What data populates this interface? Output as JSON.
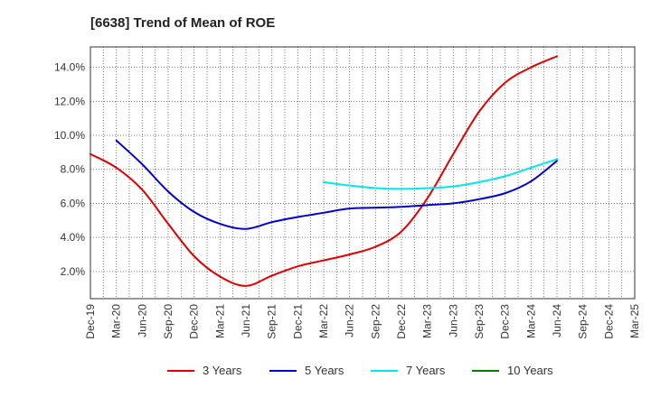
{
  "chart_data": {
    "type": "line",
    "title": "[6638]  Trend of Mean of ROE",
    "xlabel": "",
    "ylabel": "",
    "x": [
      "Dec-19",
      "Mar-20",
      "Jun-20",
      "Sep-20",
      "Dec-20",
      "Mar-21",
      "Jun-21",
      "Sep-21",
      "Dec-21",
      "Mar-22",
      "Jun-22",
      "Sep-22",
      "Dec-22",
      "Mar-23",
      "Jun-23",
      "Sep-23",
      "Dec-23",
      "Mar-24",
      "Jun-24",
      "Sep-24",
      "Dec-24",
      "Mar-25"
    ],
    "ylim": [
      0.4,
      15.2
    ],
    "yticks": [
      2.0,
      4.0,
      6.0,
      8.0,
      10.0,
      12.0,
      14.0
    ],
    "ytick_labels": [
      "2.0%",
      "4.0%",
      "6.0%",
      "8.0%",
      "10.0%",
      "12.0%",
      "14.0%"
    ],
    "grid": true,
    "legend_position": "bottom",
    "series": [
      {
        "name": "3 Years",
        "color": "#e00000",
        "values": [
          8.9,
          8.1,
          6.8,
          4.8,
          2.9,
          1.7,
          1.15,
          1.75,
          2.3,
          2.65,
          3.0,
          3.45,
          4.35,
          6.3,
          8.9,
          11.4,
          13.1,
          14.0,
          14.65,
          null,
          null,
          null
        ]
      },
      {
        "name": "5 Years",
        "color": "#0000cc",
        "values": [
          null,
          9.7,
          8.3,
          6.7,
          5.5,
          4.8,
          4.5,
          4.9,
          5.2,
          5.45,
          5.7,
          5.75,
          5.8,
          5.9,
          6.0,
          6.25,
          6.6,
          7.3,
          8.5,
          null,
          null,
          null
        ]
      },
      {
        "name": "7 Years",
        "color": "#00e5ee",
        "values": [
          null,
          null,
          null,
          null,
          null,
          null,
          null,
          null,
          null,
          7.25,
          7.05,
          6.9,
          6.85,
          6.9,
          7.0,
          7.25,
          7.6,
          8.1,
          8.6,
          null,
          null,
          null
        ]
      },
      {
        "name": "10 Years",
        "color": "#008000",
        "values": [
          null,
          null,
          null,
          null,
          null,
          null,
          null,
          null,
          null,
          null,
          null,
          null,
          null,
          null,
          null,
          null,
          null,
          null,
          null,
          null,
          null,
          null
        ]
      }
    ]
  }
}
